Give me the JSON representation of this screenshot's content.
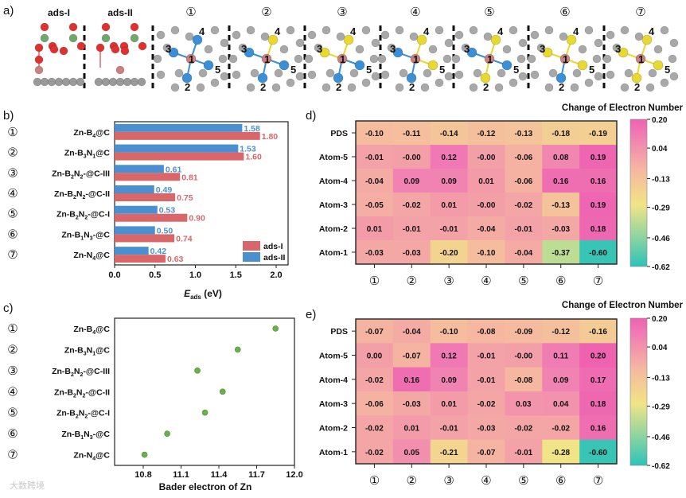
{
  "panel_labels": {
    "a": "a)",
    "b": "b)",
    "c": "c)",
    "d": "d)",
    "e": "e)"
  },
  "panel_a": {
    "headers": [
      "ads-I",
      "ads-II",
      "①",
      "②",
      "③",
      "④",
      "⑤",
      "⑥",
      "⑦"
    ],
    "atom_numbers": [
      "1",
      "2",
      "3",
      "4",
      "5"
    ],
    "dopant_patterns": [
      {
        "id": "①",
        "atom2": "B",
        "atom3": "B",
        "atom4": "B",
        "atom5": "B"
      },
      {
        "id": "②",
        "atom2": "B",
        "atom3": "B",
        "atom4": "N",
        "atom5": "B"
      },
      {
        "id": "③",
        "atom2": "B",
        "atom3": "N",
        "atom4": "N",
        "atom5": "B"
      },
      {
        "id": "④",
        "atom2": "B",
        "atom3": "B",
        "atom4": "N",
        "atom5": "N"
      },
      {
        "id": "⑤",
        "atom2": "N",
        "atom3": "B",
        "atom4": "N",
        "atom5": "B"
      },
      {
        "id": "⑥",
        "atom2": "B",
        "atom3": "N",
        "atom4": "N",
        "atom5": "N"
      },
      {
        "id": "⑦",
        "atom2": "N",
        "atom3": "N",
        "atom4": "N",
        "atom5": "N"
      }
    ],
    "colors": {
      "B": "#3a8fd6",
      "N": "#e8d830",
      "C": "#9a9a9a",
      "Zn": "#c98080",
      "O": "#e03030",
      "S": "#6fa86a"
    }
  },
  "chart_data": [
    {
      "id": "b",
      "type": "bar",
      "orientation": "horizontal",
      "markers": [
        "①",
        "②",
        "③",
        "④",
        "⑤",
        "⑥",
        "⑦"
      ],
      "categories": [
        "Zn-B4@C",
        "Zn-B3N1@C",
        "Zn-B2N2-@C-III",
        "Zn-B2N2-@C-II",
        "Zn-B2N2-@C-I",
        "Zn-B1N3-@C",
        "Zn-N4@C"
      ],
      "category_parts": [
        [
          [
            "Zn-B",
            ""
          ],
          [
            "4",
            "s"
          ],
          [
            "@C",
            ""
          ]
        ],
        [
          [
            "Zn-B",
            ""
          ],
          [
            "3",
            "s"
          ],
          [
            "N",
            ""
          ],
          [
            "1",
            "s"
          ],
          [
            "@C",
            ""
          ]
        ],
        [
          [
            "Zn-B",
            ""
          ],
          [
            "2",
            "s"
          ],
          [
            "N",
            ""
          ],
          [
            "2",
            "s"
          ],
          [
            "-@C-III",
            ""
          ]
        ],
        [
          [
            "Zn-B",
            ""
          ],
          [
            "2",
            "s"
          ],
          [
            "N",
            ""
          ],
          [
            "2",
            "s"
          ],
          [
            "-@C-II",
            ""
          ]
        ],
        [
          [
            "Zn-B",
            ""
          ],
          [
            "2",
            "s"
          ],
          [
            "N",
            ""
          ],
          [
            "2",
            "s"
          ],
          [
            "-@C-I",
            ""
          ]
        ],
        [
          [
            "Zn-B",
            ""
          ],
          [
            "1",
            "s"
          ],
          [
            "N",
            ""
          ],
          [
            "3",
            "s"
          ],
          [
            "-@C",
            ""
          ]
        ],
        [
          [
            "Zn-N",
            ""
          ],
          [
            "4",
            "s"
          ],
          [
            "@C",
            ""
          ]
        ]
      ],
      "series": [
        {
          "name": "ads-II",
          "color": "#4a90d0",
          "values": [
            1.58,
            1.53,
            0.61,
            0.49,
            0.53,
            0.5,
            0.42
          ],
          "labels": [
            "1.58",
            "1.53",
            "0.61",
            "0.49",
            "0.53",
            "0.50",
            "0.42"
          ]
        },
        {
          "name": "ads-I",
          "color": "#d9676a",
          "values": [
            1.8,
            1.6,
            0.81,
            0.75,
            0.9,
            0.74,
            0.63
          ],
          "labels": [
            "1.80",
            "1.60",
            "0.81",
            "0.75",
            "0.90",
            "0.74",
            "0.63"
          ]
        }
      ],
      "legend": [
        "ads-I",
        "ads-II"
      ],
      "legend_position": "bottom-right",
      "xlabel_main": "E",
      "xlabel_sub": "ads",
      "xlabel_unit": " (eV)",
      "xlim": [
        0,
        2.1
      ],
      "xticks": [
        "0.0",
        "0.5",
        "1.0",
        "1.5",
        "2.0"
      ]
    },
    {
      "id": "c",
      "type": "scatter",
      "markers": [
        "①",
        "②",
        "③",
        "④",
        "⑤",
        "⑥",
        "⑦"
      ],
      "categories": [
        "Zn-B4@C",
        "Zn-B3N1@C",
        "Zn-B2N2-@C-III",
        "Zn-B2N2-@C-II",
        "Zn-B2N2-@C-I",
        "Zn-B1N3-@C",
        "Zn-N4@C"
      ],
      "x": [
        11.85,
        11.55,
        11.23,
        11.43,
        11.29,
        10.99,
        10.81
      ],
      "color": "#6ab04c",
      "xlabel": "Bader electron of Zn",
      "xlim": [
        10.6,
        12.0
      ],
      "xticks": [
        "10.8",
        "11.1",
        "11.4",
        "11.7",
        "12.0"
      ]
    },
    {
      "id": "d",
      "type": "heatmap",
      "title": "Change of Electron  Number",
      "rows": [
        "PDS",
        "Atom-5",
        "Atom-4",
        "Atom-3",
        "Atom-2",
        "Atom-1"
      ],
      "cols": [
        "①",
        "②",
        "③",
        "④",
        "⑤",
        "⑥",
        "⑦"
      ],
      "values": [
        [
          "-0.10",
          "-0.11",
          "-0.14",
          "-0.12",
          "-0.13",
          "-0.18",
          "-0.19"
        ],
        [
          "-0.01",
          "-0.00",
          "0.12",
          "-0.00",
          "-0.06",
          "0.08",
          "0.19"
        ],
        [
          "-0.04",
          "0.09",
          "0.09",
          "0.01",
          "-0.06",
          "0.16",
          "0.16"
        ],
        [
          "-0.05",
          "-0.02",
          "0.01",
          "-0.00",
          "-0.02",
          "-0.13",
          "0.19"
        ],
        [
          "0.01",
          "-0.01",
          "-0.01",
          "-0.04",
          "-0.01",
          "-0.03",
          "0.18"
        ],
        [
          "-0.03",
          "-0.03",
          "-0.20",
          "-0.10",
          "-0.04",
          "-0.37",
          "-0.60"
        ]
      ],
      "colorbar_ticks": [
        "0.20",
        "0.04",
        "-0.13",
        "-0.29",
        "-0.46",
        "-0.62"
      ],
      "range": [
        -0.62,
        0.2
      ]
    },
    {
      "id": "e",
      "type": "heatmap",
      "title": "Change of Electron  Number",
      "rows": [
        "PDS",
        "Atom-5",
        "Atom-4",
        "Atom-3",
        "Atom-2",
        "Atom-1"
      ],
      "cols": [
        "①",
        "②",
        "③",
        "④",
        "⑤",
        "⑥",
        "⑦"
      ],
      "values": [
        [
          "-0.07",
          "-0.04",
          "-0.10",
          "-0.08",
          "-0.09",
          "-0.12",
          "-0.16"
        ],
        [
          "0.00",
          "-0.07",
          "0.12",
          "-0.01",
          "-0.00",
          "0.11",
          "0.20"
        ],
        [
          "-0.02",
          "0.16",
          "0.09",
          "-0.01",
          "-0.08",
          "0.09",
          "0.17"
        ],
        [
          "-0.06",
          "-0.03",
          "0.01",
          "-0.02",
          "0.03",
          "0.04",
          "0.18"
        ],
        [
          "-0.02",
          "0.01",
          "-0.01",
          "-0.03",
          "-0.02",
          "-0.02",
          "0.16"
        ],
        [
          "-0.02",
          "0.05",
          "-0.21",
          "-0.07",
          "-0.01",
          "-0.28",
          "-0.60"
        ]
      ],
      "colorbar_ticks": [
        "0.20",
        "0.04",
        "-0.13",
        "-0.29",
        "-0.46",
        "-0.62"
      ],
      "range": [
        -0.62,
        0.2
      ]
    }
  ],
  "colorscale": [
    "#2cc3b9",
    "#8dd4a0",
    "#f2e486",
    "#f5b7a0",
    "#f07ab5",
    "#ee62b0"
  ],
  "watermark": "大数跨境"
}
